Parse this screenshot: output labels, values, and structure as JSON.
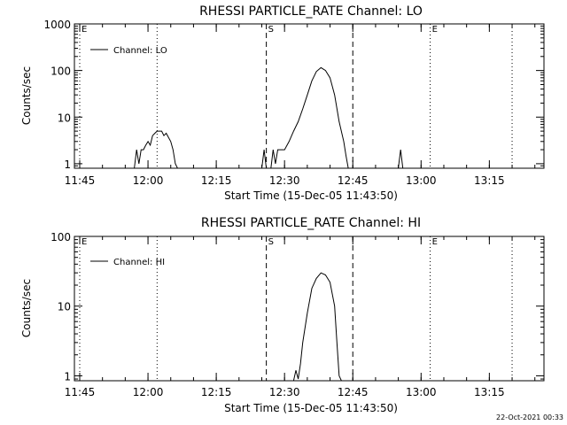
{
  "chart_data": [
    {
      "type": "line",
      "title": "RHESSI PARTICLE_RATE Channel: LO",
      "xlabel": "Start Time (15-Dec-05 11:43:50)",
      "ylabel": "Counts/sec",
      "x_ticks": [
        "11:45",
        "12:00",
        "12:15",
        "12:30",
        "12:45",
        "13:00",
        "13:15"
      ],
      "y_ticks": [
        "1",
        "10",
        "100",
        "1000"
      ],
      "y_scale": "log",
      "ylim": [
        0.8,
        1000
      ],
      "xlim": [
        "11:43:50",
        "13:27:00"
      ],
      "legend": "Channel: LO",
      "legend_position": "top-left",
      "grid": false,
      "markers": [
        {
          "label": "E",
          "time": "11:45",
          "style": "dotted"
        },
        {
          "label": "",
          "time": "12:02",
          "style": "dotted"
        },
        {
          "label": "S",
          "time": "12:26",
          "style": "dashed"
        },
        {
          "label": "",
          "time": "12:45",
          "style": "dashed"
        },
        {
          "label": "E",
          "time": "13:02",
          "style": "dotted"
        },
        {
          "label": "",
          "time": "13:20",
          "style": "dotted"
        }
      ],
      "series": [
        {
          "name": "Channel: LO",
          "points": [
            [
              "11:57:00",
              0
            ],
            [
              "11:57:30",
              2
            ],
            [
              "11:58:00",
              1
            ],
            [
              "11:58:30",
              2
            ],
            [
              "11:59:00",
              2
            ],
            [
              "11:59:30",
              2.5
            ],
            [
              "12:00:00",
              3
            ],
            [
              "12:00:30",
              2.5
            ],
            [
              "12:01:00",
              4
            ],
            [
              "12:01:30",
              4.5
            ],
            [
              "12:02:00",
              5
            ],
            [
              "12:02:30",
              5
            ],
            [
              "12:03:00",
              5
            ],
            [
              "12:03:30",
              4
            ],
            [
              "12:04:00",
              4.5
            ],
            [
              "12:05:00",
              3
            ],
            [
              "12:05:30",
              2
            ],
            [
              "12:06:00",
              1
            ],
            [
              "12:06:30",
              0
            ],
            [
              "12:25:00",
              0
            ],
            [
              "12:25:30",
              2
            ],
            [
              "12:26:00",
              0
            ],
            [
              "12:27:00",
              0
            ],
            [
              "12:27:30",
              2
            ],
            [
              "12:28:00",
              1
            ],
            [
              "12:28:30",
              2
            ],
            [
              "12:29:00",
              2
            ],
            [
              "12:30:00",
              2
            ],
            [
              "12:31:00",
              3
            ],
            [
              "12:32:00",
              5
            ],
            [
              "12:33:00",
              8
            ],
            [
              "12:34:00",
              15
            ],
            [
              "12:35:00",
              30
            ],
            [
              "12:36:00",
              60
            ],
            [
              "12:37:00",
              95
            ],
            [
              "12:38:00",
              115
            ],
            [
              "12:39:00",
              100
            ],
            [
              "12:40:00",
              70
            ],
            [
              "12:41:00",
              30
            ],
            [
              "12:42:00",
              8
            ],
            [
              "12:43:00",
              3
            ],
            [
              "12:43:30",
              1.5
            ],
            [
              "12:44:00",
              0
            ],
            [
              "12:55:00",
              0
            ],
            [
              "12:55:30",
              2
            ],
            [
              "12:56:00",
              0
            ]
          ]
        }
      ]
    },
    {
      "type": "line",
      "title": "RHESSI PARTICLE_RATE Channel: HI",
      "xlabel": "Start Time (15-Dec-05 11:43:50)",
      "ylabel": "Counts/sec",
      "x_ticks": [
        "11:45",
        "12:00",
        "12:15",
        "12:30",
        "12:45",
        "13:00",
        "13:15"
      ],
      "y_ticks": [
        "1",
        "10",
        "100"
      ],
      "y_scale": "log",
      "ylim": [
        0.85,
        100
      ],
      "xlim": [
        "11:43:50",
        "13:27:00"
      ],
      "legend": "Channel: HI",
      "legend_position": "top-left",
      "grid": false,
      "markers": [
        {
          "label": "E",
          "time": "11:45",
          "style": "dotted"
        },
        {
          "label": "",
          "time": "12:02",
          "style": "dotted"
        },
        {
          "label": "S",
          "time": "12:26",
          "style": "dashed"
        },
        {
          "label": "",
          "time": "12:45",
          "style": "dashed"
        },
        {
          "label": "E",
          "time": "13:02",
          "style": "dotted"
        },
        {
          "label": "",
          "time": "13:20",
          "style": "dotted"
        }
      ],
      "series": [
        {
          "name": "Channel: HI",
          "points": [
            [
              "12:32:00",
              0
            ],
            [
              "12:32:30",
              1.2
            ],
            [
              "12:33:00",
              0.9
            ],
            [
              "12:33:30",
              1.5
            ],
            [
              "12:34:00",
              3
            ],
            [
              "12:35:00",
              8
            ],
            [
              "12:36:00",
              18
            ],
            [
              "12:37:00",
              25
            ],
            [
              "12:38:00",
              30
            ],
            [
              "12:39:00",
              28
            ],
            [
              "12:40:00",
              22
            ],
            [
              "12:41:00",
              10
            ],
            [
              "12:41:30",
              3
            ],
            [
              "12:42:00",
              1
            ],
            [
              "12:42:30",
              0
            ]
          ]
        }
      ]
    }
  ],
  "footer": {
    "timestamp": "22-Oct-2021 00:33"
  }
}
